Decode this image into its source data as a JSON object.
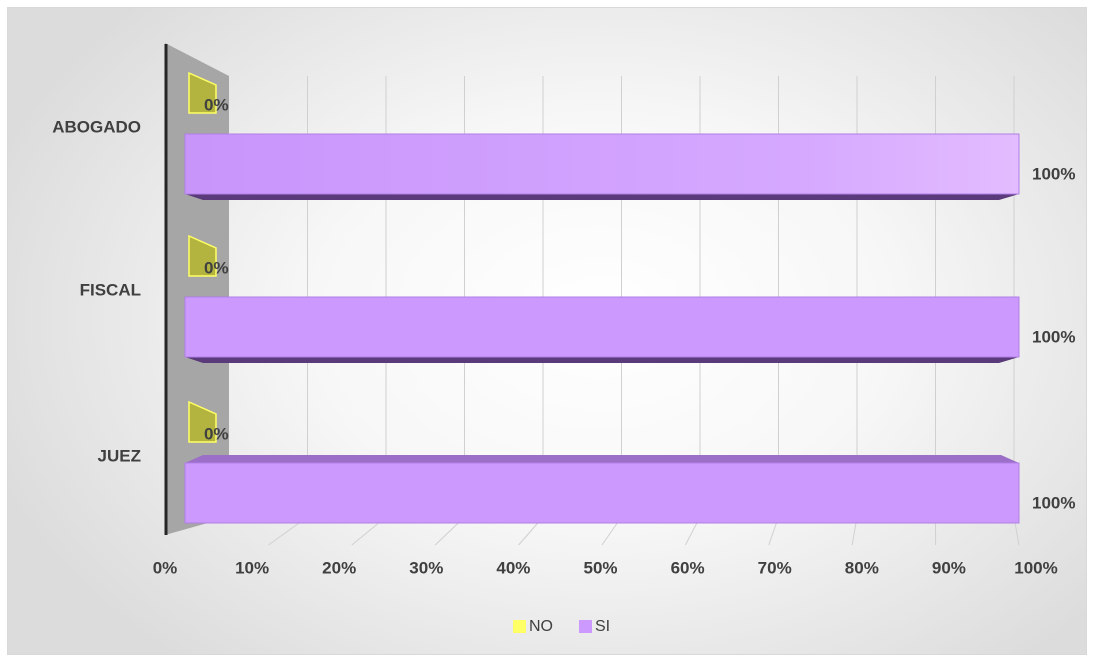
{
  "chart_data": {
    "type": "bar",
    "orientation": "horizontal",
    "style": "3d-clustered",
    "categories": [
      "ABOGADO",
      "FISCAL",
      "JUEZ"
    ],
    "series": [
      {
        "name": "NO",
        "values": [
          0,
          0,
          0
        ],
        "labels": [
          "0%",
          "0%",
          "0%"
        ],
        "color": "#FFFF66"
      },
      {
        "name": "SI",
        "values": [
          100,
          100,
          100
        ],
        "labels": [
          "100%",
          "100%",
          "100%"
        ],
        "color": "#CC99FF"
      }
    ],
    "x_ticks": [
      "0%",
      "10%",
      "20%",
      "30%",
      "40%",
      "50%",
      "60%",
      "70%",
      "80%",
      "90%",
      "100%"
    ],
    "xlim": [
      0,
      100
    ],
    "grid": true,
    "legend": {
      "position": "bottom",
      "entries": [
        "NO",
        "SI"
      ]
    }
  }
}
